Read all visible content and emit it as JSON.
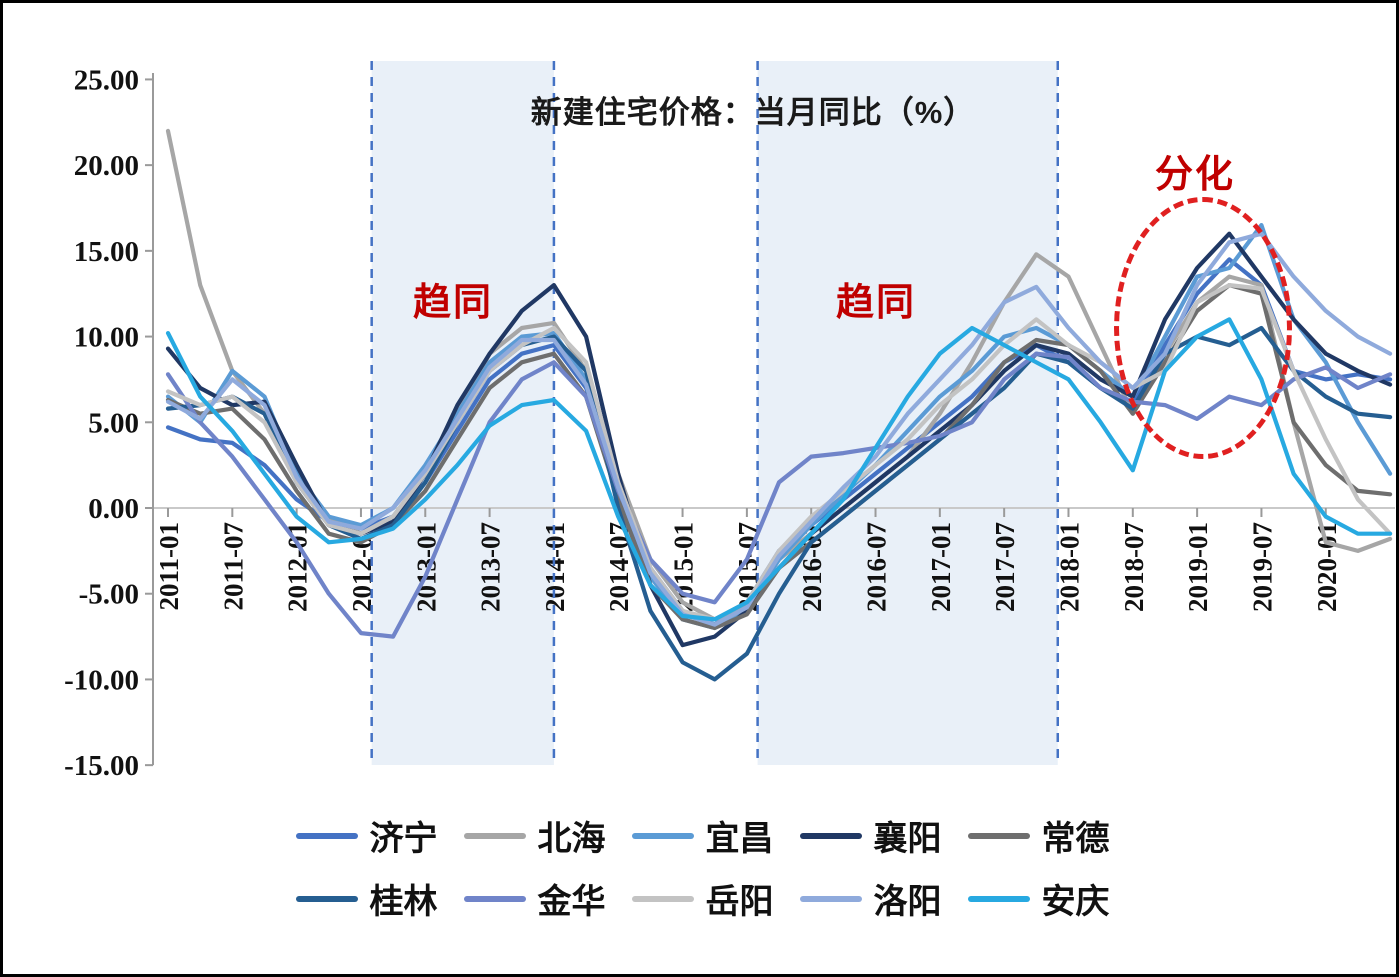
{
  "chart_data": {
    "type": "line",
    "title": "新建住宅价格：当月同比（%）",
    "ylabel": "",
    "xlabel": "",
    "ylim": [
      -15,
      25
    ],
    "grid": "zero-line-only",
    "ytick_labels": [
      "25.00",
      "20.00",
      "15.00",
      "10.00",
      "5.00",
      "0.00",
      "-5.00",
      "-10.00",
      "-15.00"
    ],
    "ytick_values": [
      25,
      20,
      15,
      10,
      5,
      0,
      -5,
      -10,
      -15
    ],
    "x_tick_labels": [
      "2011-01",
      "2011-07",
      "2012-01",
      "2012-07",
      "2013-01",
      "2013-07",
      "2014-01",
      "2014-07",
      "2015-01",
      "2015-07",
      "2016-01",
      "2016-07",
      "2017-01",
      "2017-07",
      "2018-01",
      "2018-07",
      "2019-01",
      "2019-07",
      "2020-01"
    ],
    "x": [
      "2011-01",
      "2011-04",
      "2011-07",
      "2011-10",
      "2012-01",
      "2012-04",
      "2012-07",
      "2012-10",
      "2013-01",
      "2013-04",
      "2013-07",
      "2013-10",
      "2014-01",
      "2014-04",
      "2014-07",
      "2014-10",
      "2015-01",
      "2015-04",
      "2015-07",
      "2015-10",
      "2016-01",
      "2016-04",
      "2016-07",
      "2016-10",
      "2017-01",
      "2017-04",
      "2017-07",
      "2017-10",
      "2018-01",
      "2018-04",
      "2018-07",
      "2018-10",
      "2019-01",
      "2019-04",
      "2019-07",
      "2019-10",
      "2020-01",
      "2020-04",
      "2020-07"
    ],
    "series": [
      {
        "name": "济宁",
        "color": "#4472C4",
        "values": [
          4.7,
          4.0,
          3.8,
          2.5,
          0.5,
          -0.8,
          -1.2,
          -0.5,
          1.5,
          4.5,
          7.5,
          9.0,
          9.5,
          7.0,
          1.5,
          -3.5,
          -6.0,
          -6.8,
          -5.5,
          -2.5,
          -1.0,
          0.5,
          2.0,
          3.5,
          5.0,
          6.5,
          8.5,
          9.5,
          8.5,
          7.0,
          6.0,
          9.5,
          12.5,
          14.5,
          13.0,
          8.0,
          7.5,
          7.8,
          7.5
        ]
      },
      {
        "name": "北海",
        "color": "#A6A6A6",
        "values": [
          22.0,
          13.0,
          8.0,
          5.5,
          2.0,
          -0.5,
          -1.5,
          -0.5,
          2.0,
          5.5,
          9.0,
          10.5,
          10.8,
          8.0,
          2.0,
          -3.0,
          -5.5,
          -6.5,
          -5.8,
          -3.0,
          -1.5,
          0.0,
          1.5,
          3.0,
          5.5,
          8.5,
          12.0,
          14.8,
          13.5,
          9.5,
          5.5,
          9.0,
          12.0,
          13.5,
          13.0,
          5.0,
          -2.0,
          -2.5,
          -1.8
        ]
      },
      {
        "name": "宜昌",
        "color": "#5B9BD5",
        "values": [
          6.5,
          5.0,
          8.0,
          6.5,
          2.0,
          -0.5,
          -1.0,
          0.0,
          2.5,
          5.5,
          8.5,
          10.0,
          10.2,
          7.5,
          1.0,
          -4.0,
          -6.5,
          -7.0,
          -6.0,
          -3.0,
          -1.0,
          0.8,
          2.5,
          4.5,
          6.5,
          8.0,
          10.0,
          10.5,
          9.5,
          8.0,
          6.5,
          10.0,
          13.5,
          14.0,
          16.5,
          11.0,
          8.5,
          5.0,
          2.0
        ]
      },
      {
        "name": "襄阳",
        "color": "#203864",
        "values": [
          9.3,
          7.0,
          6.0,
          6.2,
          2.5,
          -1.0,
          -1.5,
          -0.8,
          2.0,
          6.0,
          9.0,
          11.5,
          13.0,
          10.0,
          2.0,
          -4.5,
          -8.0,
          -7.5,
          -6.0,
          -3.5,
          -1.5,
          0.0,
          1.5,
          3.0,
          4.5,
          6.0,
          8.0,
          9.5,
          9.0,
          7.5,
          6.5,
          11.0,
          14.0,
          16.0,
          13.5,
          11.0,
          9.0,
          8.0,
          7.2
        ]
      },
      {
        "name": "常德",
        "color": "#6E6E6E",
        "values": [
          6.3,
          5.5,
          5.8,
          4.0,
          1.0,
          -1.5,
          -2.0,
          -1.0,
          1.0,
          4.0,
          7.0,
          8.5,
          9.0,
          6.5,
          0.5,
          -4.5,
          -6.5,
          -7.0,
          -6.2,
          -3.5,
          -2.0,
          -0.5,
          1.0,
          2.5,
          4.0,
          6.0,
          8.5,
          9.8,
          9.5,
          8.0,
          5.5,
          8.5,
          11.5,
          13.0,
          12.5,
          5.0,
          2.5,
          1.0,
          0.8
        ]
      },
      {
        "name": "桂林",
        "color": "#255E91",
        "values": [
          5.8,
          6.0,
          6.5,
          5.5,
          1.5,
          -1.0,
          -1.8,
          -1.0,
          1.5,
          5.0,
          8.0,
          9.5,
          10.0,
          8.0,
          0.0,
          -6.0,
          -9.0,
          -10.0,
          -8.5,
          -5.0,
          -2.0,
          -0.5,
          1.0,
          2.5,
          4.0,
          5.5,
          7.0,
          9.0,
          8.5,
          7.0,
          5.8,
          9.0,
          10.0,
          9.5,
          10.5,
          8.0,
          6.5,
          5.5,
          5.3
        ]
      },
      {
        "name": "金华",
        "color": "#7084C9",
        "values": [
          7.8,
          5.0,
          3.0,
          0.5,
          -2.0,
          -5.0,
          -7.3,
          -7.5,
          -4.0,
          0.5,
          5.0,
          7.5,
          8.5,
          6.5,
          1.0,
          -3.0,
          -5.0,
          -5.5,
          -3.0,
          1.5,
          3.0,
          3.2,
          3.5,
          3.8,
          4.2,
          5.0,
          7.5,
          9.0,
          8.8,
          7.0,
          6.2,
          6.0,
          5.2,
          6.5,
          6.0,
          7.5,
          8.2,
          7.0,
          7.8
        ]
      },
      {
        "name": "岳阳",
        "color": "#C3C3C3",
        "values": [
          6.8,
          6.0,
          6.5,
          5.0,
          1.5,
          -1.0,
          -1.5,
          -0.5,
          2.0,
          5.0,
          8.0,
          9.5,
          10.5,
          8.5,
          1.5,
          -3.5,
          -6.0,
          -6.5,
          -5.5,
          -2.5,
          -0.5,
          1.0,
          2.5,
          4.0,
          6.0,
          7.5,
          9.5,
          11.0,
          9.5,
          8.5,
          7.0,
          8.0,
          12.0,
          13.0,
          12.8,
          8.0,
          4.0,
          0.5,
          -1.5
        ]
      },
      {
        "name": "洛阳",
        "color": "#8FAADC",
        "values": [
          6.2,
          5.2,
          7.5,
          6.0,
          1.8,
          -0.8,
          -1.2,
          0.0,
          2.2,
          5.2,
          8.2,
          9.8,
          9.8,
          7.2,
          1.2,
          -3.8,
          -6.2,
          -6.8,
          -5.8,
          -2.8,
          -0.8,
          1.2,
          3.0,
          5.5,
          7.5,
          9.5,
          12.0,
          12.9,
          10.5,
          8.5,
          7.0,
          9.0,
          13.0,
          15.5,
          16.0,
          13.5,
          11.5,
          10.0,
          9.0
        ]
      },
      {
        "name": "安庆",
        "color": "#27A9E1",
        "values": [
          10.2,
          6.5,
          4.5,
          2.0,
          -0.5,
          -2.0,
          -1.8,
          -1.2,
          0.5,
          2.5,
          4.8,
          6.0,
          6.3,
          4.5,
          -0.5,
          -4.5,
          -6.3,
          -6.5,
          -5.5,
          -3.5,
          -1.5,
          0.5,
          3.5,
          6.5,
          9.0,
          10.5,
          9.5,
          8.5,
          7.5,
          5.0,
          2.2,
          8.0,
          10.0,
          11.0,
          7.5,
          2.0,
          -0.5,
          -1.5,
          -1.5
        ]
      }
    ],
    "shaded_regions": [
      {
        "from": "2012-08",
        "to": "2014-01",
        "label": "趋同",
        "fill": "#E9F0F8"
      },
      {
        "from": "2015-08",
        "to": "2017-12",
        "label": "趋同",
        "fill": "#E9F0F8"
      }
    ],
    "dashed_vlines": {
      "dates": [
        "2012-08",
        "2014-01",
        "2015-08",
        "2017-12"
      ],
      "color": "#4472C4"
    },
    "annotations": {
      "convergence_left": "趋同",
      "convergence_right": "趋同",
      "divergence": "分化",
      "text_color": "#C00000",
      "ellipse": {
        "center_date": "2019-01",
        "center_value": 10.5,
        "color": "#E02020",
        "style": "dashed"
      }
    },
    "legend_position": "bottom",
    "legend_rows": [
      [
        "济宁",
        "北海",
        "宜昌",
        "襄阳",
        "常德"
      ],
      [
        "桂林",
        "金华",
        "岳阳",
        "洛阳",
        "安庆"
      ]
    ]
  }
}
